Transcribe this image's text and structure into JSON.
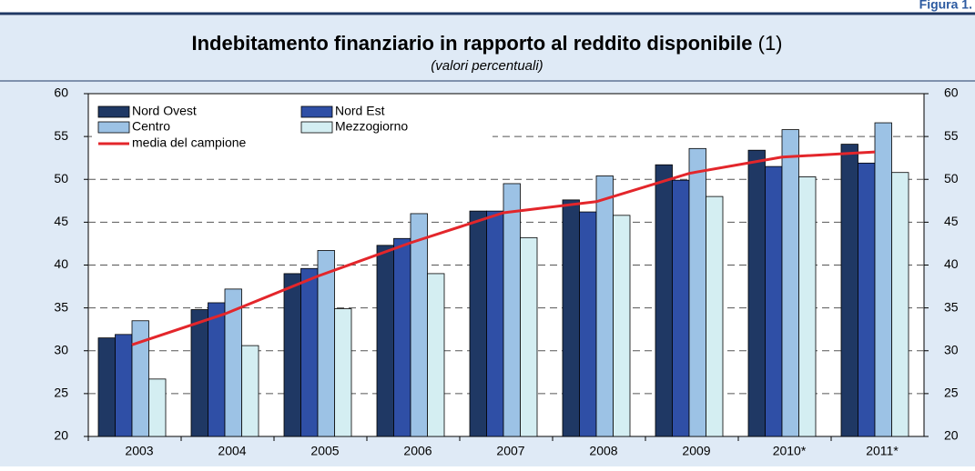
{
  "header": "Figura 1.",
  "chart_data": {
    "type": "bar",
    "title": "Indebitamento finanziario in rapporto al reddito disponibile",
    "title_note": "(1)",
    "subtitle": "(valori percentuali)",
    "categories": [
      "2003",
      "2004",
      "2005",
      "2006",
      "2007",
      "2008",
      "2009",
      "2010*",
      "2011*"
    ],
    "series": [
      {
        "name": "Nord Ovest",
        "color": "#1f3864",
        "values": [
          31.5,
          34.8,
          39.0,
          42.3,
          46.3,
          47.6,
          51.7,
          53.4,
          54.1
        ]
      },
      {
        "name": "Nord Est",
        "color": "#2f4fa6",
        "values": [
          31.9,
          35.6,
          39.6,
          43.1,
          46.3,
          46.2,
          49.9,
          51.5,
          51.9
        ]
      },
      {
        "name": "Centro",
        "color": "#9cc2e5",
        "values": [
          33.5,
          37.2,
          41.7,
          46.0,
          49.5,
          50.4,
          53.6,
          55.8,
          56.6
        ]
      },
      {
        "name": "Mezzogiorno",
        "color": "#d4eef2",
        "values": [
          26.7,
          30.6,
          34.9,
          39.0,
          43.2,
          45.8,
          48.0,
          50.3,
          50.8
        ]
      },
      {
        "name": "media del campione",
        "color": "#e3262b",
        "type": "line",
        "values": [
          30.7,
          34.3,
          38.7,
          42.6,
          46.1,
          47.4,
          50.7,
          52.6,
          53.2
        ]
      }
    ],
    "ylim": [
      20,
      60
    ],
    "yticks": [
      20,
      25,
      30,
      35,
      40,
      45,
      50,
      55,
      60
    ],
    "grid": true,
    "legend": "upper left"
  }
}
